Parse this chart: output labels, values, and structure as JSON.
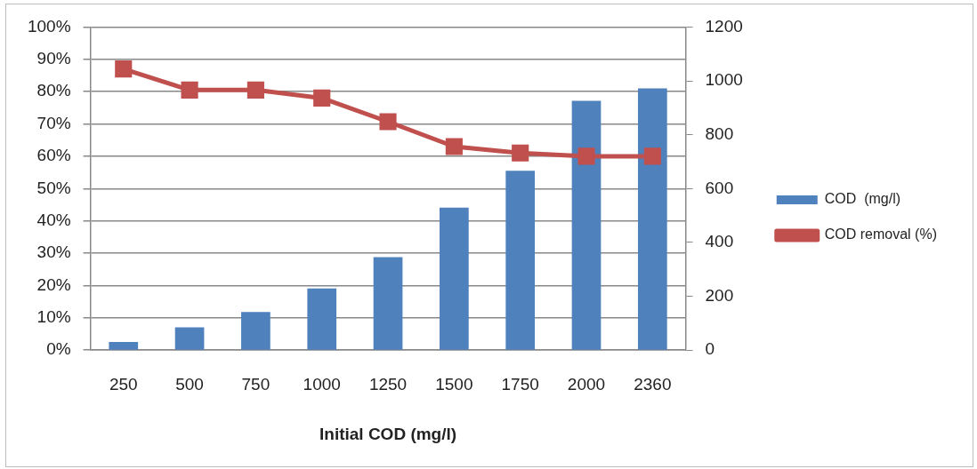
{
  "chart_data": {
    "type": "bar",
    "xlabel": "Initial COD (mg/l)",
    "categories": [
      "250",
      "500",
      "750",
      "1000",
      "1250",
      "1500",
      "1750",
      "2000",
      "2360"
    ],
    "series": [
      {
        "name": "COD  (mg/l)",
        "axis": "y2",
        "color": "#4f81bd",
        "values": [
          30,
          85,
          142,
          229,
          345,
          529,
          666,
          926,
          972
        ]
      },
      {
        "name": "COD removal (%)",
        "type": "line",
        "axis": "y",
        "color": "#c0504d",
        "marker": "square",
        "values": [
          87,
          80.5,
          80.5,
          78,
          70.7,
          63,
          61,
          60,
          60
        ]
      }
    ],
    "ylim": [
      0,
      100
    ],
    "yticks": [
      {
        "value": 0,
        "label": "0%"
      },
      {
        "value": 10,
        "label": "10%"
      },
      {
        "value": 20,
        "label": "20%"
      },
      {
        "value": 30,
        "label": "30%"
      },
      {
        "value": 40,
        "label": "40%"
      },
      {
        "value": 50,
        "label": "50%"
      },
      {
        "value": 60,
        "label": "60%"
      },
      {
        "value": 70,
        "label": "70%"
      },
      {
        "value": 80,
        "label": "80%"
      },
      {
        "value": 90,
        "label": "90%"
      },
      {
        "value": 100,
        "label": "100%"
      }
    ],
    "y2lim": [
      0,
      1200
    ],
    "y2ticks": [
      0,
      200,
      400,
      600,
      800,
      1000,
      1200
    ],
    "grid": "y",
    "legend": "right"
  }
}
